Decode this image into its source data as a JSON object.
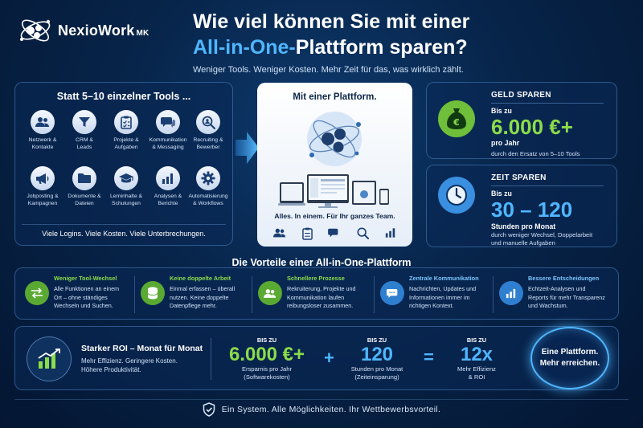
{
  "brand": {
    "name": "NexioWork",
    "suffix": "MK"
  },
  "headline": {
    "line1": "Wie viel können Sie mit einer",
    "line2_highlight": "All-in-One-",
    "line2_rest": "Plattform sparen?",
    "subtitle": "Weniger Tools. Weniger Kosten. Mehr Zeit für das, was wirklich zählt."
  },
  "tools_panel": {
    "title": "Statt 5–10 einzelner Tools ...",
    "items": [
      {
        "label": "Netzwerk &\nKontakte",
        "icon": "users-icon"
      },
      {
        "label": "CRM &\nLeads",
        "icon": "funnel-icon"
      },
      {
        "label": "Projekte &\nAufgaben",
        "icon": "clipboard-icon"
      },
      {
        "label": "Kommunikation\n& Messaging",
        "icon": "chat-icon"
      },
      {
        "label": "Recruiting &\nBewerber",
        "icon": "search-person-icon"
      },
      {
        "label": "Jobposting &\nKampagnen",
        "icon": "megaphone-icon"
      },
      {
        "label": "Dokumente &\nDateien",
        "icon": "folder-icon"
      },
      {
        "label": "Lerninhalte &\nSchulungen",
        "icon": "graduation-cap-icon"
      },
      {
        "label": "Analysen &\nBerichte",
        "icon": "bar-chart-icon"
      },
      {
        "label": "Automatisierung\n& Workflows",
        "icon": "gear-icon"
      }
    ],
    "footer": "Viele Logins. Viele Kosten. Viele Unterbrechungen."
  },
  "platform": {
    "title": "Mit einer Plattform.",
    "tagline": "Alles. In einem. Für Ihr ganzes Team."
  },
  "money": {
    "heading": "GELD SPAREN",
    "prefix": "Bis zu",
    "value": "6.000 €+",
    "unit": "pro Jahr",
    "note": "durch den Ersatz von 5–10 Tools"
  },
  "time": {
    "heading": "ZEIT SPAREN",
    "prefix": "Bis zu",
    "value": "30 – 120",
    "unit": "Stunden pro Monat",
    "note": "durch weniger Wechsel, Doppelarbeit\nund manuelle Aufgaben"
  },
  "benefits": {
    "title": "Die Vorteile einer All-in-One-Plattform",
    "items": [
      {
        "title": "Weniger Tool-Wechsel",
        "text": "Alle Funktionen an einem\nOrt – ohne ständiges\nWechseln und Suchen.",
        "color": "#8bdc4a"
      },
      {
        "title": "Keine doppelte Arbeit",
        "text": "Einmal erfassen – überall\nnutzen. Keine doppelte\nDatenpflege mehr.",
        "color": "#8bdc4a"
      },
      {
        "title": "Schnellere Prozesse",
        "text": "Rekruiterung, Projekte und\nKommunikation laufen\nreibungsloser zusammen.",
        "color": "#8bdc4a"
      },
      {
        "title": "Zentrale Kommunikation",
        "text": "Nachrichten, Updates und\nInformationen immer im\nrichtigen Kontext.",
        "color": "#7cc4ff"
      },
      {
        "title": "Bessere Entscheidungen",
        "text": "Echtzeit-Analysen und\nReports für mehr Transparenz\nund Wachstum.",
        "color": "#7cc4ff"
      }
    ]
  },
  "roi": {
    "title": "Starker ROI – Monat für Monat",
    "desc": "Mehr Effizienz. Geringere Kosten.\nHöhere Produktivität.",
    "stats": [
      {
        "prefix": "BIS ZU",
        "value": "6.000 €+",
        "caption": "Ersparnis pro Jahr\n(Softwarekosten)",
        "color": "#8bdc4a"
      },
      {
        "prefix": "BIS ZU",
        "value": "120",
        "caption": "Stunden pro Monat\n(Zeiteinsparung)",
        "color": "#4fb6ff"
      },
      {
        "prefix": "BIS ZU",
        "value": "12x",
        "caption": "Mehr Effizienz\n& ROI",
        "color": "#4fb6ff"
      }
    ],
    "plus": "+",
    "equals": "=",
    "badge": "Eine Plattform.\nMehr erreichen."
  },
  "footer": {
    "text": "Ein System. Alle Möglichkeiten. Ihr Wettbewerbsvorteil."
  }
}
